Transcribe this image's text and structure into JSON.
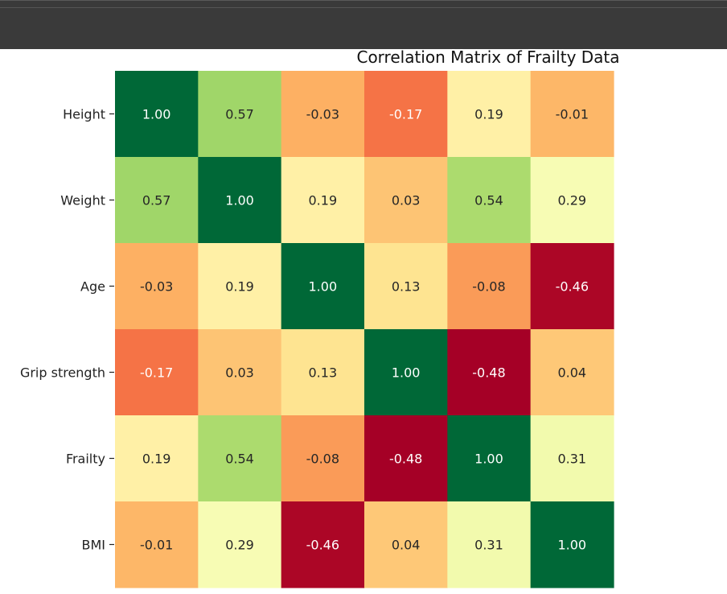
{
  "chart_data": {
    "type": "heatmap",
    "title": "Correlation Matrix of Frailty Data",
    "row_labels": [
      "Height",
      "Weight",
      "Age",
      "Grip strength",
      "Frailty",
      "BMI"
    ],
    "colormap": "RdYlGn",
    "vmin": -0.48,
    "vmax": 1.0,
    "values": [
      [
        1.0,
        0.57,
        -0.03,
        -0.17,
        0.19,
        -0.01
      ],
      [
        0.57,
        1.0,
        0.19,
        0.03,
        0.54,
        0.29
      ],
      [
        -0.03,
        0.19,
        1.0,
        0.13,
        -0.08,
        -0.46
      ],
      [
        -0.17,
        0.03,
        0.13,
        1.0,
        -0.48,
        0.04
      ],
      [
        0.19,
        0.54,
        -0.08,
        -0.48,
        1.0,
        0.31
      ],
      [
        -0.01,
        0.29,
        -0.46,
        0.04,
        0.31,
        1.0
      ]
    ],
    "value_format": "0.00",
    "colorbar": false
  }
}
